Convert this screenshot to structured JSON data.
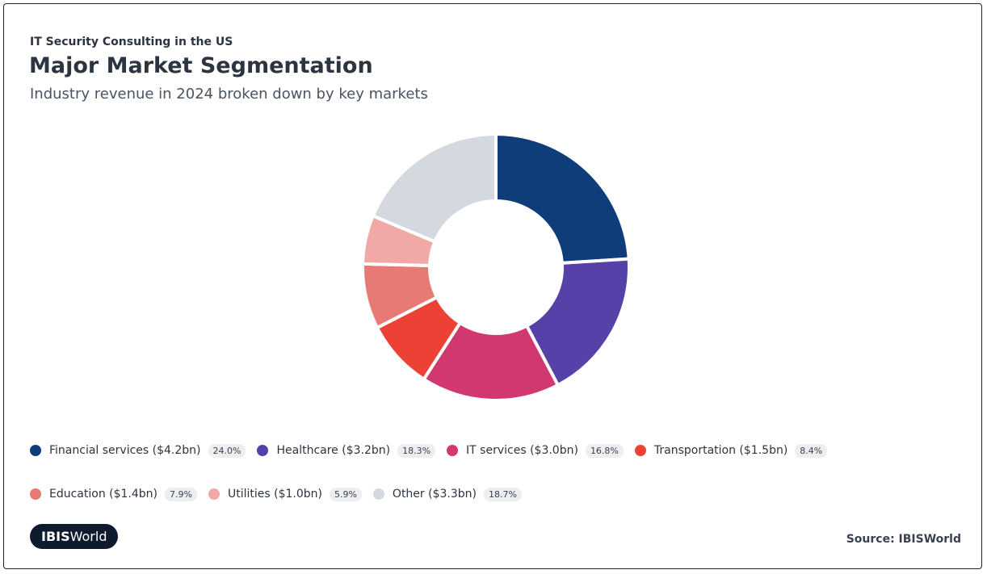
{
  "chart_data": {
    "type": "donut",
    "supertitle": "IT Security Consulting in the US",
    "title": "Major Market Segmentation",
    "subtitle": "Industry revenue in 2024 broken down by key markets",
    "categories": [
      "Financial services ($4.2bn)",
      "Healthcare ($3.2bn)",
      "IT services ($3.0bn)",
      "Transportation ($1.5bn)",
      "Education ($1.4bn)",
      "Utilities ($1.0bn)",
      "Other ($3.3bn)"
    ],
    "values": [
      24.0,
      18.3,
      16.8,
      8.4,
      7.9,
      5.9,
      18.7
    ],
    "value_labels": [
      "24.0%",
      "18.3%",
      "16.8%",
      "8.4%",
      "7.9%",
      "5.9%",
      "18.7%"
    ],
    "colors": [
      "#0f3d7a",
      "#5541a8",
      "#d0386f",
      "#ee4135",
      "#e87a76",
      "#f0a9a7",
      "#d3d9de"
    ],
    "logo": {
      "bold": "IBIS",
      "rest": "World"
    },
    "source": "Source: IBISWorld"
  }
}
